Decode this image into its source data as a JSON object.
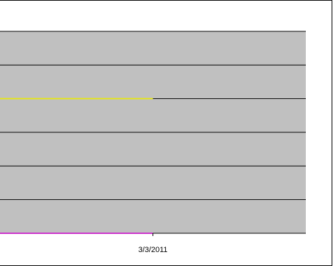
{
  "chart_data": {
    "type": "line",
    "title": "",
    "xlabel": "",
    "ylabel": "",
    "categories": [
      "3/3/2011"
    ],
    "ylim": [
      0,
      6
    ],
    "grid": true,
    "legend": "none",
    "series": [
      {
        "values": [
          4
        ],
        "color": "#E6E619"
      },
      {
        "values": [
          0
        ],
        "color": "#CC33CC"
      }
    ],
    "plot_area_color": "#C0C0C0",
    "gridline_color": "#000000"
  }
}
